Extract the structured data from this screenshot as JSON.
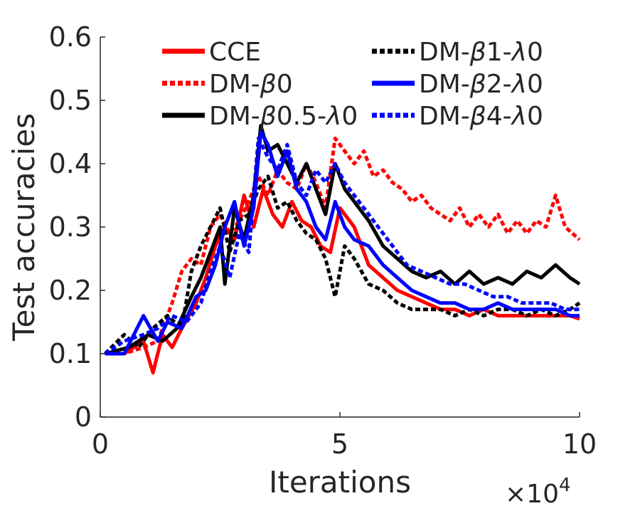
{
  "chart_data": {
    "type": "line",
    "title": "",
    "xlabel": "Iterations",
    "ylabel": "Test accuracies",
    "x_exponent_label": "×10",
    "x_exponent_power": "4",
    "xlim": [
      0,
      10
    ],
    "ylim": [
      0,
      0.6
    ],
    "xticks": [
      0,
      5,
      10
    ],
    "xtick_labels": [
      "0",
      "5",
      "10"
    ],
    "yticks": [
      0,
      0.1,
      0.2,
      0.3,
      0.4,
      0.5,
      0.6
    ],
    "ytick_labels": [
      "0",
      "0.1",
      "0.2",
      "0.3",
      "0.4",
      "0.5",
      "0.6"
    ],
    "grid": false,
    "legend_position": "top",
    "series": [
      {
        "name": "CCE",
        "label_parts": [
          "CCE"
        ],
        "color": "#ff0000",
        "style": "solid",
        "x": [
          0.1,
          0.5,
          0.9,
          1.1,
          1.3,
          1.5,
          1.7,
          2.0,
          2.2,
          2.4,
          2.6,
          2.8,
          3.0,
          3.2,
          3.4,
          3.6,
          3.8,
          4.0,
          4.2,
          4.4,
          4.6,
          4.8,
          5.0,
          5.3,
          5.6,
          5.9,
          6.2,
          6.5,
          6.8,
          7.1,
          7.4,
          7.7,
          8.0,
          8.3,
          8.6,
          8.9,
          9.2,
          9.5,
          9.8,
          10.0
        ],
        "y": [
          0.1,
          0.1,
          0.12,
          0.07,
          0.13,
          0.11,
          0.14,
          0.18,
          0.22,
          0.27,
          0.3,
          0.28,
          0.35,
          0.3,
          0.36,
          0.32,
          0.3,
          0.34,
          0.31,
          0.3,
          0.27,
          0.26,
          0.33,
          0.3,
          0.24,
          0.22,
          0.2,
          0.19,
          0.18,
          0.17,
          0.17,
          0.16,
          0.17,
          0.16,
          0.16,
          0.16,
          0.16,
          0.16,
          0.16,
          0.155
        ]
      },
      {
        "name": "DM-β0",
        "label_parts": [
          "DM-",
          "β",
          "0"
        ],
        "color": "#ff0000",
        "style": "dotted",
        "x": [
          0.1,
          0.5,
          0.9,
          1.2,
          1.5,
          1.7,
          1.9,
          2.1,
          2.3,
          2.5,
          2.7,
          2.9,
          3.1,
          3.3,
          3.5,
          3.7,
          3.9,
          4.1,
          4.3,
          4.5,
          4.7,
          4.9,
          5.1,
          5.3,
          5.5,
          5.7,
          5.9,
          6.1,
          6.3,
          6.5,
          6.7,
          6.9,
          7.1,
          7.3,
          7.5,
          7.7,
          7.9,
          8.1,
          8.3,
          8.5,
          8.7,
          8.9,
          9.1,
          9.3,
          9.5,
          9.7,
          10.0
        ],
        "y": [
          0.1,
          0.1,
          0.11,
          0.12,
          0.18,
          0.23,
          0.25,
          0.24,
          0.3,
          0.32,
          0.29,
          0.31,
          0.34,
          0.38,
          0.35,
          0.39,
          0.37,
          0.36,
          0.4,
          0.37,
          0.33,
          0.44,
          0.42,
          0.4,
          0.42,
          0.38,
          0.39,
          0.37,
          0.36,
          0.34,
          0.35,
          0.33,
          0.32,
          0.31,
          0.33,
          0.3,
          0.32,
          0.3,
          0.32,
          0.29,
          0.31,
          0.29,
          0.31,
          0.3,
          0.35,
          0.3,
          0.28
        ]
      },
      {
        "name": "DM-β0.5-λ0",
        "label_parts": [
          "DM-",
          "β",
          "0.5-",
          "λ",
          "0"
        ],
        "color": "#000000",
        "style": "solid",
        "x": [
          0.1,
          0.6,
          1.0,
          1.3,
          1.6,
          1.9,
          2.1,
          2.3,
          2.5,
          2.6,
          2.8,
          3.0,
          3.2,
          3.35,
          3.5,
          3.7,
          3.9,
          4.1,
          4.3,
          4.5,
          4.7,
          4.9,
          5.1,
          5.3,
          5.6,
          5.9,
          6.2,
          6.5,
          6.8,
          7.1,
          7.4,
          7.7,
          8.0,
          8.3,
          8.6,
          8.9,
          9.2,
          9.5,
          9.8,
          10.0
        ],
        "y": [
          0.1,
          0.11,
          0.13,
          0.12,
          0.14,
          0.19,
          0.22,
          0.26,
          0.3,
          0.21,
          0.33,
          0.28,
          0.35,
          0.46,
          0.42,
          0.43,
          0.4,
          0.37,
          0.4,
          0.36,
          0.32,
          0.4,
          0.36,
          0.34,
          0.31,
          0.27,
          0.25,
          0.23,
          0.22,
          0.23,
          0.21,
          0.23,
          0.21,
          0.22,
          0.21,
          0.23,
          0.22,
          0.24,
          0.22,
          0.21
        ]
      },
      {
        "name": "DM-β1-λ0",
        "label_parts": [
          "DM-",
          "β",
          "1-",
          "λ",
          "0"
        ],
        "color": "#000000",
        "style": "dotted",
        "x": [
          0.1,
          0.5,
          0.8,
          1.1,
          1.4,
          1.7,
          1.9,
          2.1,
          2.3,
          2.5,
          2.7,
          2.9,
          3.1,
          3.3,
          3.5,
          3.7,
          3.9,
          4.1,
          4.3,
          4.5,
          4.7,
          4.9,
          5.1,
          5.3,
          5.6,
          5.9,
          6.2,
          6.5,
          6.8,
          7.1,
          7.4,
          7.7,
          8.0,
          8.3,
          8.6,
          8.9,
          9.2,
          9.5,
          9.8,
          10.0
        ],
        "y": [
          0.1,
          0.13,
          0.11,
          0.14,
          0.16,
          0.14,
          0.23,
          0.27,
          0.3,
          0.33,
          0.26,
          0.31,
          0.32,
          0.36,
          0.38,
          0.33,
          0.34,
          0.31,
          0.29,
          0.28,
          0.25,
          0.19,
          0.27,
          0.25,
          0.21,
          0.2,
          0.18,
          0.17,
          0.17,
          0.17,
          0.16,
          0.17,
          0.16,
          0.17,
          0.17,
          0.16,
          0.17,
          0.16,
          0.17,
          0.18
        ]
      },
      {
        "name": "DM-β2-λ0",
        "label_parts": [
          "DM-",
          "β",
          "2-",
          "λ",
          "0"
        ],
        "color": "#0000ff",
        "style": "solid",
        "x": [
          0.1,
          0.5,
          0.9,
          1.2,
          1.4,
          1.7,
          2.0,
          2.2,
          2.4,
          2.6,
          2.8,
          3.0,
          3.2,
          3.35,
          3.5,
          3.7,
          3.9,
          4.1,
          4.3,
          4.5,
          4.7,
          4.9,
          5.1,
          5.3,
          5.6,
          5.9,
          6.2,
          6.5,
          6.8,
          7.1,
          7.4,
          7.7,
          8.0,
          8.3,
          8.6,
          8.9,
          9.2,
          9.5,
          9.8,
          10.0
        ],
        "y": [
          0.1,
          0.1,
          0.16,
          0.12,
          0.15,
          0.14,
          0.19,
          0.2,
          0.24,
          0.3,
          0.34,
          0.27,
          0.33,
          0.45,
          0.43,
          0.38,
          0.42,
          0.36,
          0.34,
          0.3,
          0.28,
          0.34,
          0.3,
          0.28,
          0.27,
          0.24,
          0.22,
          0.2,
          0.19,
          0.18,
          0.18,
          0.17,
          0.17,
          0.18,
          0.17,
          0.17,
          0.17,
          0.17,
          0.16,
          0.16
        ]
      },
      {
        "name": "DM-β4-λ0",
        "label_parts": [
          "DM-",
          "β",
          "4-",
          "λ",
          "0"
        ],
        "color": "#0000ff",
        "style": "dotted",
        "x": [
          0.1,
          0.5,
          0.9,
          1.2,
          1.5,
          1.8,
          2.1,
          2.3,
          2.5,
          2.7,
          2.9,
          3.1,
          3.3,
          3.5,
          3.7,
          3.9,
          4.1,
          4.3,
          4.5,
          4.7,
          4.9,
          5.1,
          5.3,
          5.5,
          5.8,
          6.1,
          6.4,
          6.7,
          7.0,
          7.3,
          7.6,
          7.9,
          8.2,
          8.5,
          8.8,
          9.1,
          9.4,
          9.7,
          10.0
        ],
        "y": [
          0.1,
          0.12,
          0.13,
          0.14,
          0.16,
          0.15,
          0.18,
          0.23,
          0.27,
          0.22,
          0.29,
          0.26,
          0.44,
          0.41,
          0.39,
          0.43,
          0.37,
          0.35,
          0.39,
          0.37,
          0.4,
          0.37,
          0.35,
          0.33,
          0.3,
          0.27,
          0.24,
          0.23,
          0.22,
          0.21,
          0.21,
          0.2,
          0.19,
          0.19,
          0.18,
          0.18,
          0.18,
          0.17,
          0.17
        ]
      }
    ]
  }
}
